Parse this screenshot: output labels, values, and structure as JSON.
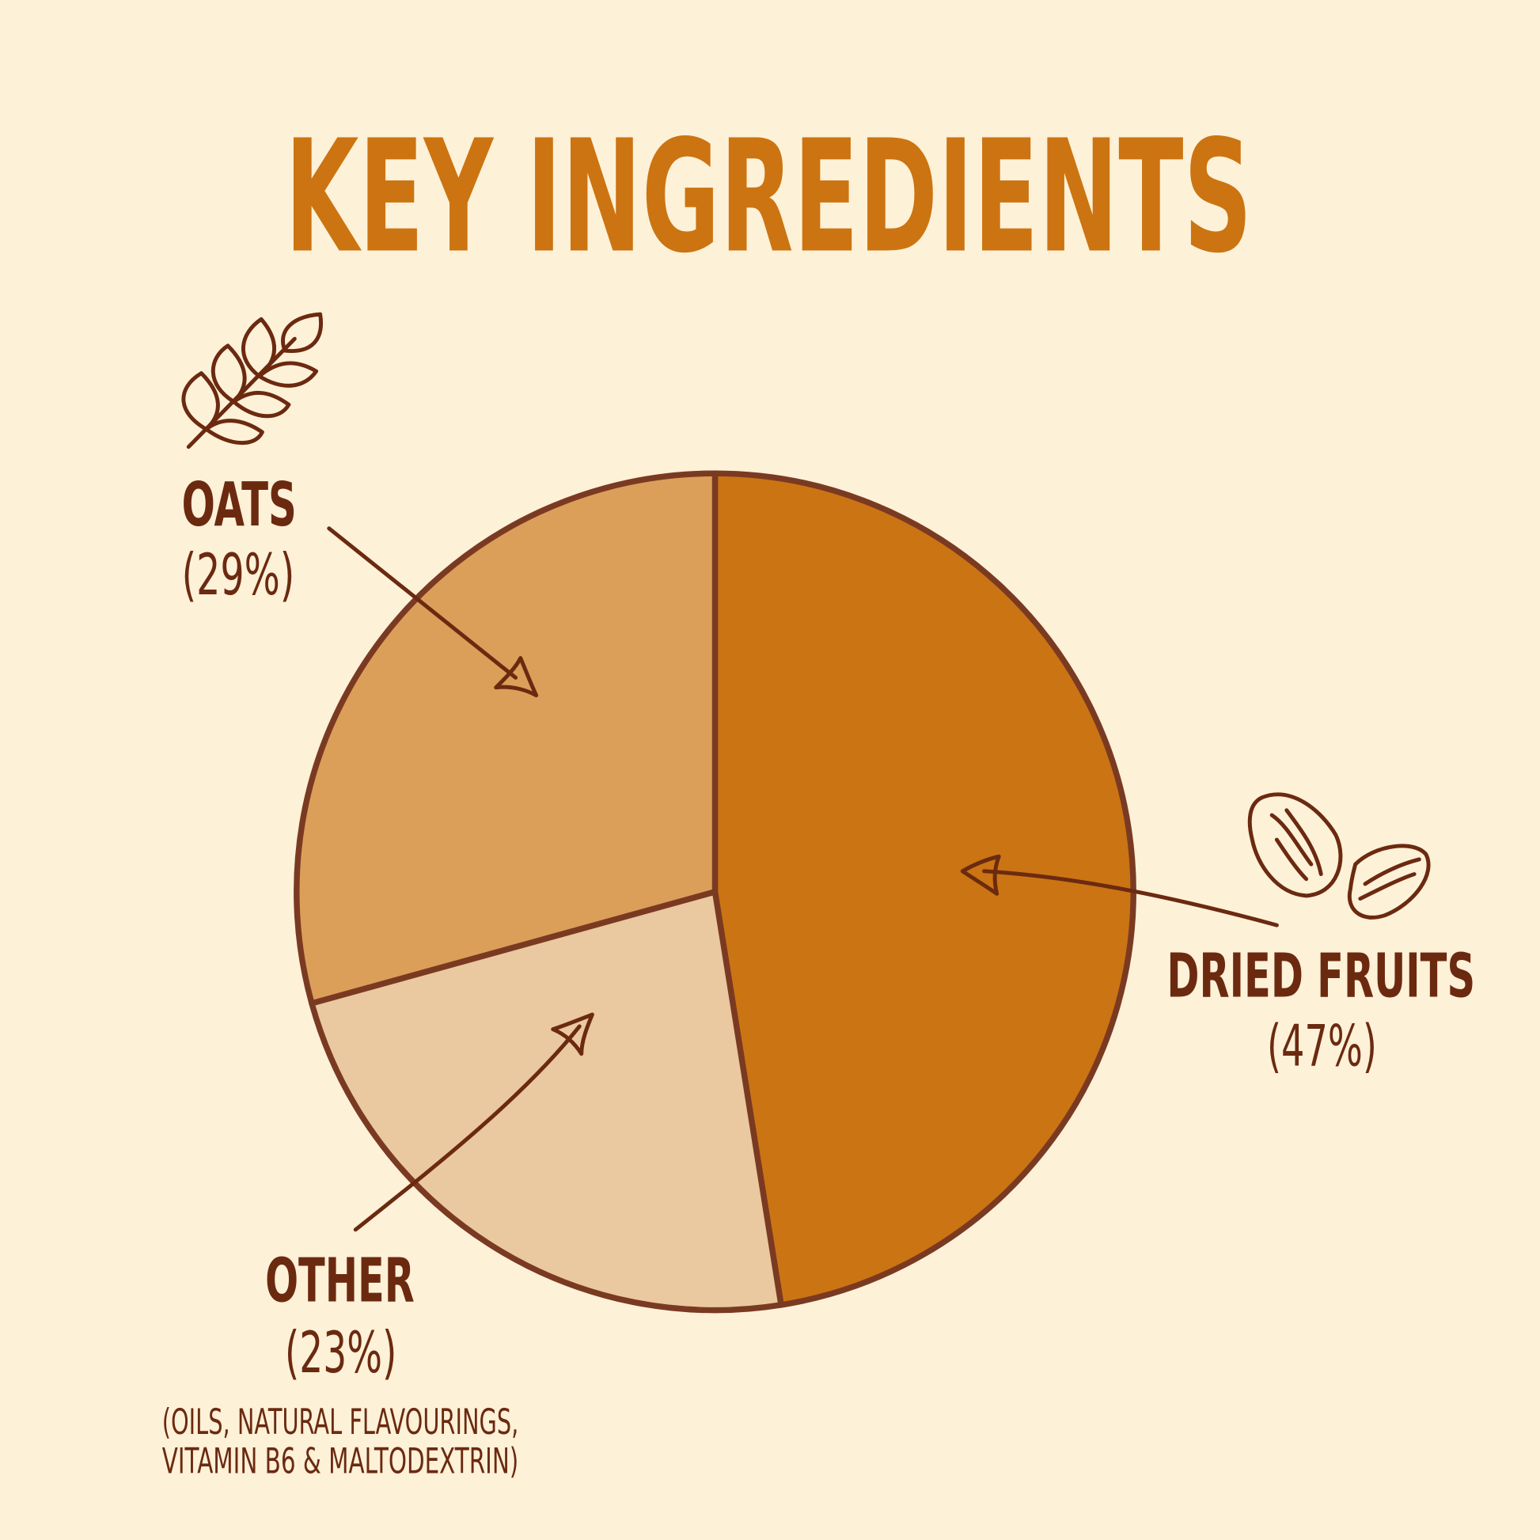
{
  "chart_data": {
    "type": "pie",
    "title": "KEY INGREDIENTS",
    "start": "top",
    "direction": "clockwise",
    "series": [
      {
        "name": "DRIED FRUITS",
        "value": 47,
        "label": "(47%)",
        "color": "#cb7413",
        "icon": "raisins-icon"
      },
      {
        "name": "OTHER",
        "value": 23,
        "label": "(23%)",
        "color": "#eac8a0",
        "note": [
          "(OILS, NATURAL FLAVOURINGS,",
          "VITAMIN B6 & MALTODEXTRIN)"
        ]
      },
      {
        "name": "OATS",
        "value": 29,
        "label": "(29%)",
        "color": "#db9f5a",
        "icon": "wheat-icon"
      }
    ]
  },
  "colors": {
    "background": "#fdf1d8",
    "title": "#cc7411",
    "ink": "#6b2a10",
    "outline": "#7a3a22"
  }
}
